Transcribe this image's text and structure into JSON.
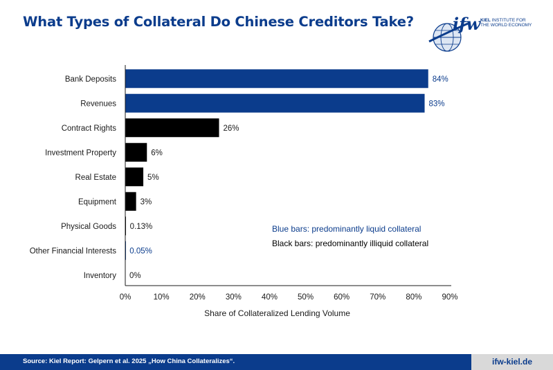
{
  "header": {
    "title": "What Types of Collateral Do Chinese Creditors Take?",
    "logo_mark": "ifw",
    "logo_line1_bold": "KIEL",
    "logo_line1": "INSTITUTE FOR",
    "logo_line2": "THE WORLD ECONOMY"
  },
  "legend": {
    "blue_note": "Blue bars: predominantly liquid collateral",
    "black_note": "Black bars: predominantly illiquid collateral"
  },
  "footer": {
    "source": "Source: Kiel Report: Gelpern et al. 2025 „How China Collateralizes“.",
    "url": "ifw-kiel.de"
  },
  "colors": {
    "blue": "#0b3c8c",
    "black": "#000000"
  },
  "chart_data": {
    "type": "bar",
    "orientation": "horizontal",
    "categories": [
      "Bank Deposits",
      "Revenues",
      "Contract Rights",
      "Investment Property",
      "Real Estate",
      "Equipment",
      "Physical Goods",
      "Other Financial Interests",
      "Inventory"
    ],
    "values": [
      84,
      83,
      26,
      6,
      5,
      3,
      0.13,
      0.05,
      0
    ],
    "value_labels": [
      "84%",
      "83%",
      "26%",
      "6%",
      "5%",
      "3%",
      "0.13%",
      "0.05%",
      "0%"
    ],
    "bar_colors": [
      "blue",
      "blue",
      "black",
      "black",
      "black",
      "black",
      "black",
      "blue",
      "black"
    ],
    "xlabel": "Share of Collateralized Lending Volume",
    "ylabel": "",
    "xlim": [
      0,
      90
    ],
    "xticks": [
      0,
      10,
      20,
      30,
      40,
      50,
      60,
      70,
      80,
      90
    ],
    "xtick_labels": [
      "0%",
      "10%",
      "20%",
      "30%",
      "40%",
      "50%",
      "60%",
      "70%",
      "80%",
      "90%"
    ],
    "grid": false
  }
}
